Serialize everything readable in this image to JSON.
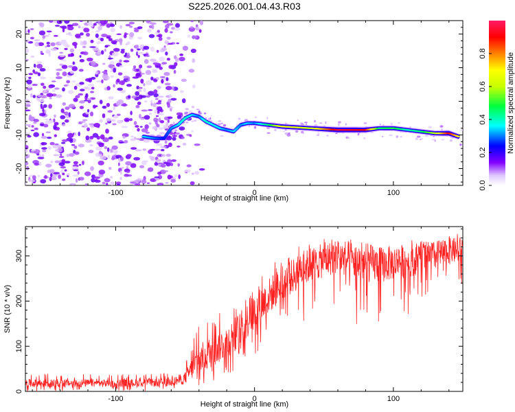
{
  "figure_title": "S225.2026.001.04.43.R03",
  "colorbar": {
    "label": "Normalized spectral amplitude",
    "ticks": [
      "0.0",
      "0.2",
      "0.4",
      "0.6",
      "0.8"
    ],
    "range": [
      0,
      1
    ],
    "colors": [
      "#ffffff",
      "#d9b3ff",
      "#8000ff",
      "#0000ff",
      "#00ffff",
      "#00ff66",
      "#ffff00",
      "#ff8000",
      "#ff0000",
      "#ff1a66"
    ]
  },
  "chart_data": [
    {
      "type": "heatmap",
      "title": "",
      "xlabel": "Height of straight line (km)",
      "ylabel": "Frequency (Hz)",
      "xlim": [
        -165,
        150
      ],
      "ylim": [
        -25,
        24
      ],
      "xticks": [
        "-100",
        "0",
        "100"
      ],
      "yticks": [
        "-20",
        "-10",
        "0",
        "10",
        "20"
      ],
      "ridge": {
        "description_x": [
          -80,
          -72,
          -65,
          -60,
          -55,
          -50,
          -45,
          -40,
          -35,
          -30,
          -25,
          -20,
          -15,
          -10,
          -5,
          0,
          10,
          20,
          40,
          60,
          80,
          90,
          100,
          110,
          120,
          130,
          140,
          147
        ],
        "frequency": [
          -10.5,
          -11,
          -11,
          -8,
          -7,
          -5,
          -4,
          -4.5,
          -6,
          -7,
          -8,
          -8.5,
          -9,
          -7,
          -6.5,
          -6.5,
          -7,
          -7.5,
          -8,
          -8.5,
          -8.5,
          -8,
          -8,
          -8.5,
          -9,
          -9.5,
          -9.5,
          -10.5
        ],
        "peak_amplitude": [
          0.35,
          0.3,
          0.25,
          0.3,
          0.35,
          0.4,
          0.35,
          0.3,
          0.4,
          0.35,
          0.35,
          0.3,
          0.35,
          0.3,
          0.35,
          0.3,
          0.45,
          0.7,
          0.6,
          0.95,
          0.9,
          0.45,
          0.5,
          0.4,
          0.45,
          0.6,
          0.9,
          0.7
        ]
      },
      "noise_region_x": [
        -165,
        -55
      ],
      "noise_amplitude_range": [
        0.0,
        0.25
      ]
    },
    {
      "type": "line",
      "title": "",
      "xlabel": "Height of straight line (km)",
      "ylabel": "SNR (10 * v/v)",
      "xlim": [
        -165,
        150
      ],
      "ylim": [
        0,
        365
      ],
      "xticks": [
        "-100",
        "0",
        "100"
      ],
      "yticks": [
        "0",
        "100",
        "200",
        "300"
      ],
      "color": "#ff2020",
      "envelope": {
        "x": [
          -165,
          -100,
          -60,
          -50,
          -40,
          -30,
          -20,
          -10,
          0,
          10,
          20,
          30,
          40,
          50,
          60,
          70,
          80,
          90,
          100,
          110,
          120,
          130,
          140,
          150
        ],
        "upper": [
          40,
          38,
          40,
          60,
          160,
          180,
          190,
          220,
          250,
          280,
          300,
          320,
          330,
          340,
          350,
          340,
          335,
          330,
          330,
          335,
          340,
          345,
          350,
          355
        ],
        "mean": [
          18,
          18,
          20,
          30,
          70,
          90,
          110,
          140,
          175,
          210,
          240,
          260,
          280,
          290,
          300,
          290,
          285,
          280,
          285,
          290,
          295,
          300,
          310,
          315
        ],
        "lower": [
          0,
          0,
          0,
          0,
          10,
          20,
          30,
          50,
          70,
          100,
          130,
          150,
          160,
          170,
          180,
          150,
          140,
          150,
          160,
          170,
          180,
          200,
          220,
          230
        ]
      }
    }
  ]
}
